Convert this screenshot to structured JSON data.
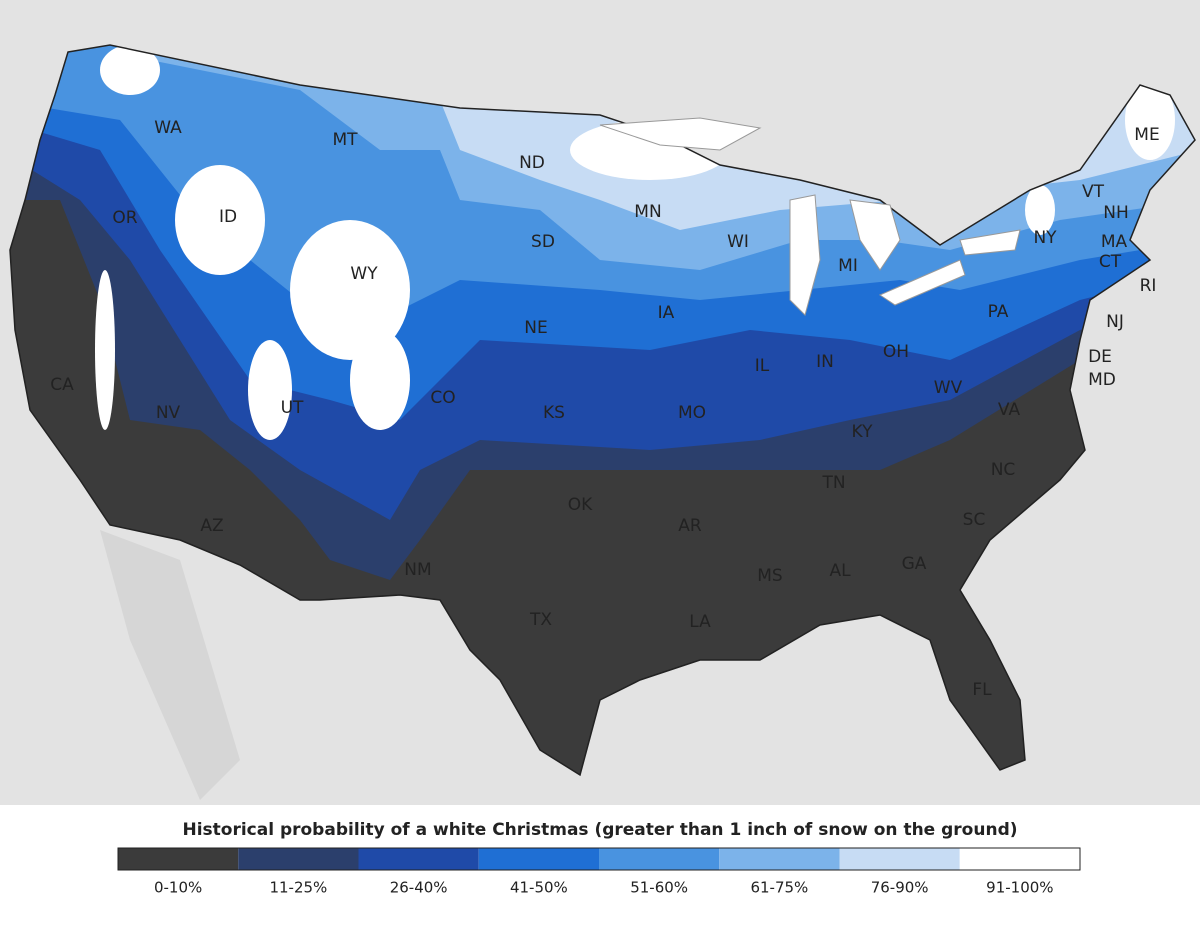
{
  "map": {
    "states": [
      "WA",
      "OR",
      "CA",
      "ID",
      "NV",
      "MT",
      "WY",
      "UT",
      "AZ",
      "CO",
      "NM",
      "ND",
      "SD",
      "NE",
      "KS",
      "OK",
      "TX",
      "MN",
      "IA",
      "MO",
      "AR",
      "LA",
      "WI",
      "IL",
      "MI",
      "IN",
      "KY",
      "TN",
      "MS",
      "AL",
      "OH",
      "GA",
      "FL",
      "SC",
      "NC",
      "VA",
      "WV",
      "PA",
      "NY",
      "VT",
      "NH",
      "ME",
      "MA",
      "CT",
      "RI",
      "NJ",
      "DE",
      "MD"
    ],
    "legend": {
      "title": "Historical probability of a white Christmas (greater than 1 inch of snow on the ground)",
      "bins": [
        {
          "label": "0-10%",
          "color": "#3b3b3b"
        },
        {
          "label": "11-25%",
          "color": "#2b3f6c"
        },
        {
          "label": "26-40%",
          "color": "#1f4aa8"
        },
        {
          "label": "41-50%",
          "color": "#1f6fd4"
        },
        {
          "label": "51-60%",
          "color": "#4993e0"
        },
        {
          "label": "61-75%",
          "color": "#7cb3ea"
        },
        {
          "label": "76-90%",
          "color": "#c7dcf4"
        },
        {
          "label": "91-100%",
          "color": "#ffffff"
        }
      ]
    }
  }
}
